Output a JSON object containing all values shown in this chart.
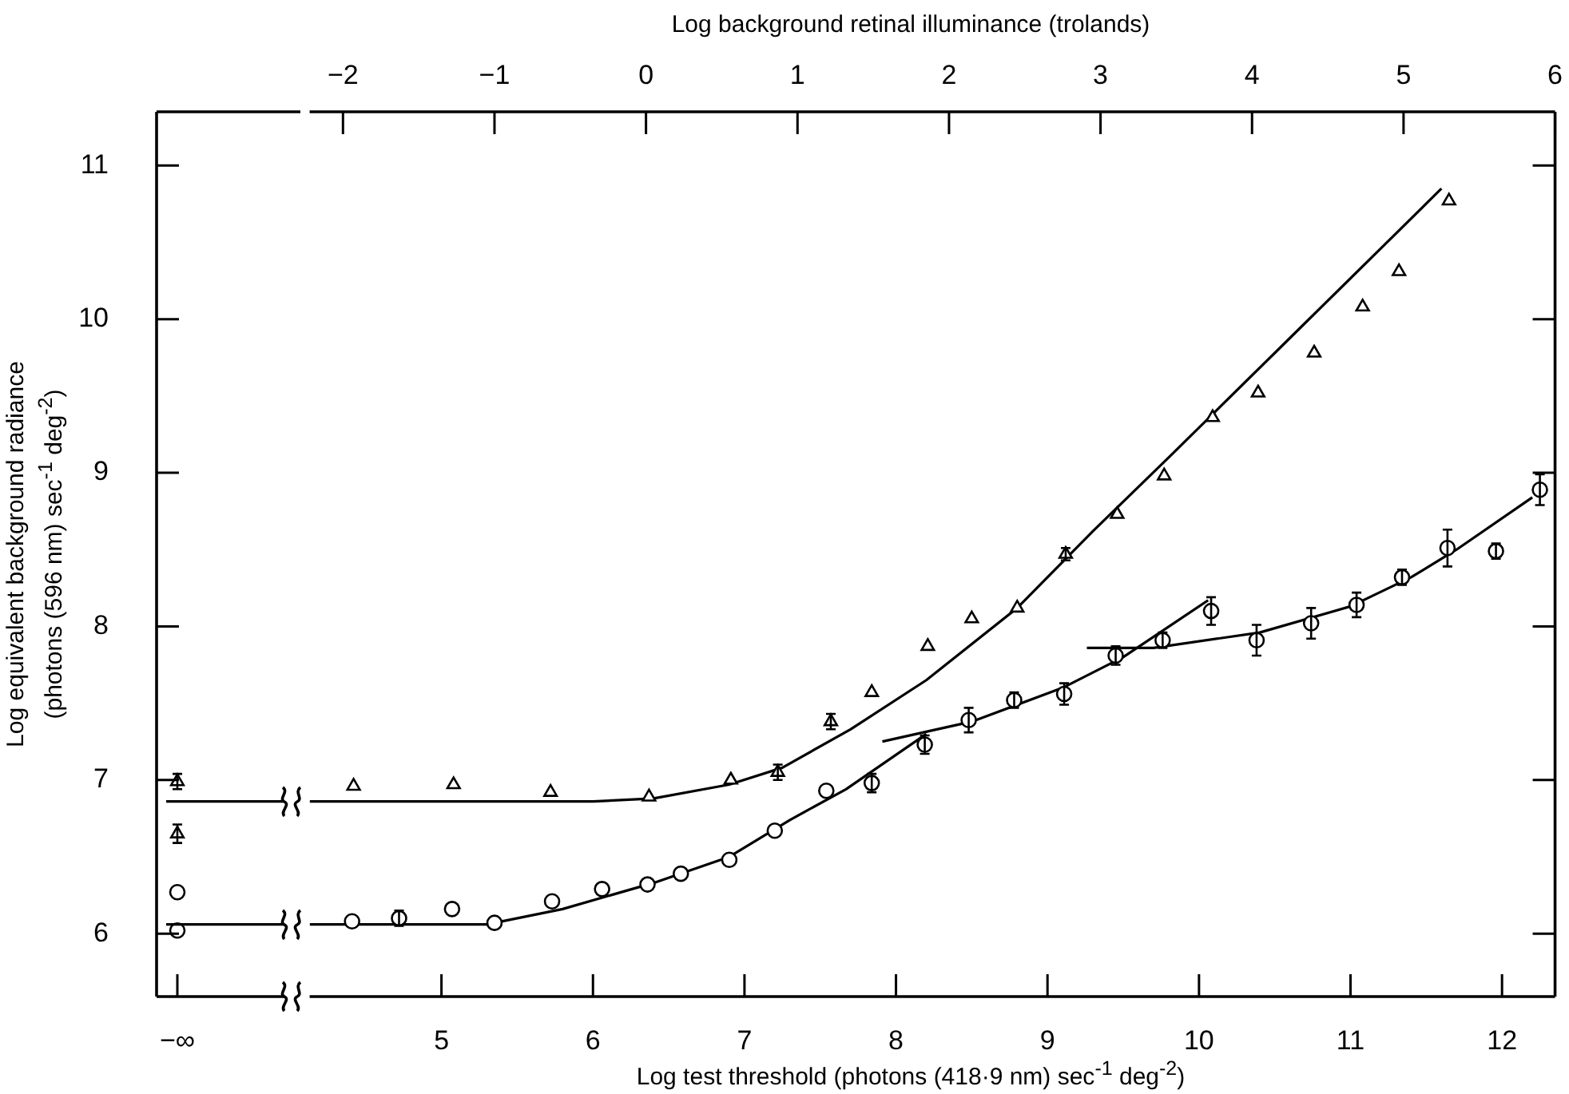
{
  "chart_data": [
    {
      "type": "scatter",
      "ylabel": "Log equivalent background radiance\n(photons (596 nm) sec$^{-1}$ deg$^{-2}$)",
      "categories": [
        "−∞"
      ],
      "ylim": [
        5.59,
        11.35
      ],
      "yticks": [
        6,
        7,
        8,
        9,
        10,
        11
      ],
      "series": [
        {
          "x": [
            "−∞",
            "−∞"
          ],
          "values": [
            6.99,
            6.65
          ],
          "errors": [
            0.05,
            0.06
          ],
          "marker": "triangle",
          "color": "#000000"
        },
        {
          "x": [
            "−∞",
            "−∞"
          ],
          "values": [
            6.27,
            6.02
          ],
          "marker": "circle",
          "color": "#000000"
        }
      ],
      "ref_lines": [
        {
          "axis": "y",
          "value": 6.86,
          "color": "#000000"
        },
        {
          "axis": "y",
          "value": 6.06,
          "color": "#000000"
        }
      ]
    },
    {
      "type": "scatter",
      "xlabel": "Log test threshold (photons (418·9 nm) sec$^{-1}$ deg$^{-2}$)",
      "x2label": "Log background retinal illuminance (trolands)",
      "xlim": [
        4.13,
        12.35
      ],
      "xticks": [
        5,
        6,
        7,
        8,
        9,
        10,
        11,
        12
      ],
      "x2lim": [
        -2.22,
        6.0
      ],
      "x2ticks": [
        {
          "value": -2,
          "label": "−2"
        },
        {
          "value": -1,
          "label": "−1"
        },
        0,
        1,
        2,
        3,
        4,
        5,
        6
      ],
      "ylim": [
        5.59,
        11.35
      ],
      "yticks": [
        6,
        7,
        8,
        9,
        10,
        11
      ],
      "tick_labels": "x",
      "series": [
        {
          "marker": "triangle",
          "color": "#000000",
          "x": [
            4.42,
            5.08,
            5.72,
            6.37,
            6.91,
            7.22,
            7.57,
            7.84,
            8.21,
            8.5,
            8.8,
            9.12,
            9.46,
            9.77,
            10.09,
            10.39,
            10.76,
            11.08,
            11.32,
            11.65
          ],
          "values": [
            6.96,
            6.97,
            6.92,
            6.89,
            7.0,
            7.05,
            7.38,
            7.57,
            7.87,
            8.05,
            8.12,
            8.47,
            8.73,
            8.98,
            9.36,
            9.52,
            9.78,
            10.08,
            10.31,
            10.77
          ],
          "errors": [
            null,
            null,
            null,
            null,
            null,
            0.05,
            0.05,
            null,
            null,
            null,
            null,
            0.04,
            null,
            null,
            null,
            null,
            null,
            null,
            null,
            null
          ]
        },
        {
          "marker": "circle",
          "color": "#000000",
          "x": [
            4.41,
            4.72,
            5.07,
            5.35,
            5.73,
            6.06,
            6.36,
            6.58,
            6.9,
            7.2,
            7.54,
            7.84,
            8.19,
            8.48,
            8.78,
            9.11,
            9.45,
            9.76,
            10.08,
            10.38,
            10.74,
            11.04,
            11.34,
            11.64,
            11.96,
            12.25
          ],
          "values": [
            6.08,
            6.1,
            6.16,
            6.07,
            6.21,
            6.29,
            6.32,
            6.39,
            6.48,
            6.67,
            6.93,
            6.98,
            7.23,
            7.39,
            7.52,
            7.56,
            7.81,
            7.91,
            8.1,
            7.91,
            8.02,
            8.14,
            8.32,
            8.51,
            8.49,
            8.89
          ],
          "errors": [
            null,
            0.05,
            null,
            null,
            null,
            null,
            null,
            null,
            null,
            null,
            null,
            0.06,
            0.06,
            0.08,
            0.05,
            0.07,
            0.06,
            0.05,
            0.09,
            0.1,
            0.1,
            0.08,
            0.05,
            0.12,
            0.05,
            0.1
          ]
        },
        {
          "type": "line",
          "color": "#000000",
          "x": [
            4.13,
            6.0,
            6.4,
            6.9,
            7.25,
            7.7,
            8.2,
            8.8,
            9.3,
            9.8,
            10.5,
            11.6
          ],
          "values": [
            6.86,
            6.86,
            6.88,
            6.97,
            7.08,
            7.33,
            7.65,
            8.12,
            8.62,
            9.1,
            9.78,
            10.85
          ]
        },
        {
          "type": "line",
          "color": "#000000",
          "x": [
            4.13,
            5.3,
            5.8,
            6.4,
            6.9,
            7.3,
            7.67,
            8.2
          ],
          "values": [
            6.06,
            6.06,
            6.16,
            6.33,
            6.5,
            6.74,
            6.94,
            7.3
          ]
        },
        {
          "type": "line",
          "color": "#000000",
          "x": [
            7.91,
            8.5,
            9.1,
            9.5,
            10.06
          ],
          "values": [
            7.25,
            7.38,
            7.6,
            7.8,
            8.17
          ]
        },
        {
          "type": "line",
          "color": "#000000",
          "x": [
            9.26,
            9.7,
            10.4,
            11.0,
            11.4,
            11.7,
            12.2
          ],
          "values": [
            7.86,
            7.86,
            7.96,
            8.13,
            8.32,
            8.5,
            8.84
          ]
        }
      ]
    }
  ]
}
